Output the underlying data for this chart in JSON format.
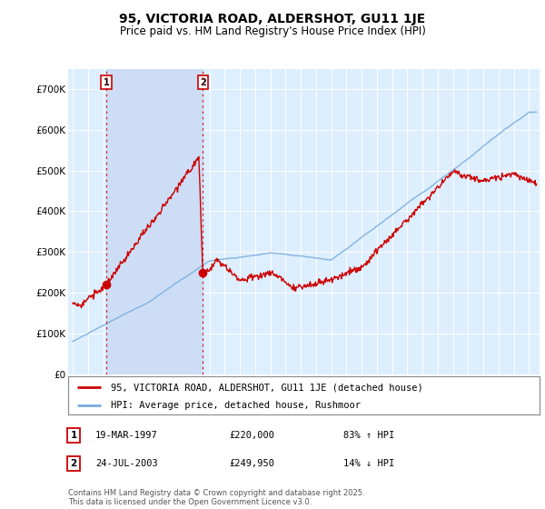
{
  "title": "95, VICTORIA ROAD, ALDERSHOT, GU11 1JE",
  "subtitle": "Price paid vs. HM Land Registry's House Price Index (HPI)",
  "hpi_label": "HPI: Average price, detached house, Rushmoor",
  "price_label": "95, VICTORIA ROAD, ALDERSHOT, GU11 1JE (detached house)",
  "transaction1": {
    "date": "19-MAR-1997",
    "price": 220000,
    "pct": "83%",
    "dir": "↑"
  },
  "transaction2": {
    "date": "24-JUL-2003",
    "price": 249950,
    "pct": "14%",
    "dir": "↓"
  },
  "copyright": "Contains HM Land Registry data © Crown copyright and database right 2025.\nThis data is licensed under the Open Government Licence v3.0.",
  "bg_color": "#ddeeff",
  "shade_color": "#ccddf5",
  "red_line_color": "#cc0000",
  "blue_line_color": "#7aaddd",
  "dashed_color": "#cc0000",
  "marker_color": "#cc0000",
  "ylim": [
    0,
    750000
  ],
  "yticks": [
    0,
    100000,
    200000,
    300000,
    400000,
    500000,
    600000,
    700000
  ],
  "ytick_labels": [
    "£0",
    "£100K",
    "£200K",
    "£300K",
    "£400K",
    "£500K",
    "£600K",
    "£700K"
  ],
  "xlim_start": 1994.7,
  "xlim_end": 2025.7,
  "transaction1_x": 1997.21,
  "transaction1_y": 220000,
  "transaction2_x": 2003.56,
  "transaction2_y": 249950
}
